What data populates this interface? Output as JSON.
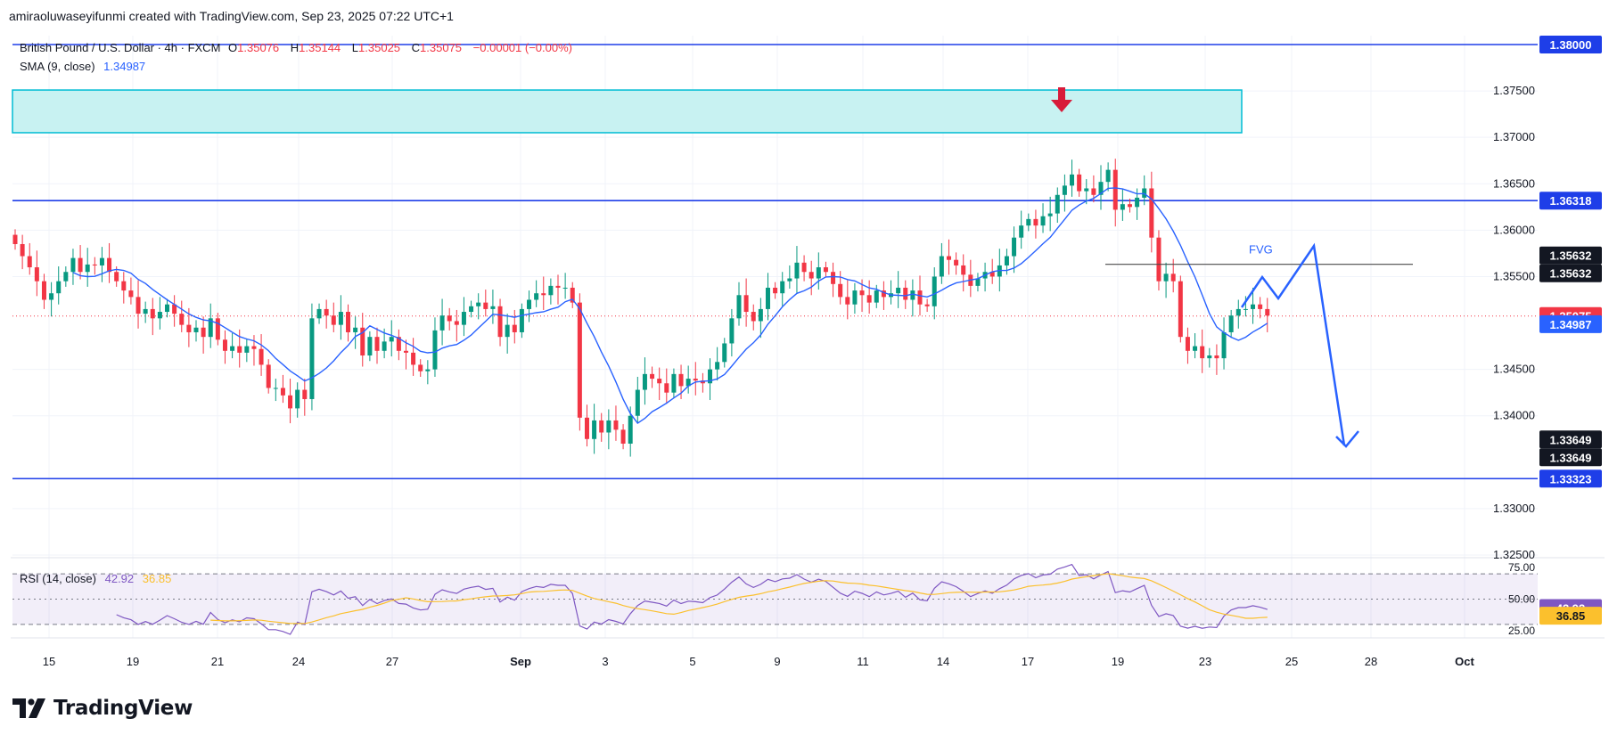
{
  "attribution": "amiraoluwaseyifunmi created with TradingView.com, Sep 23, 2025 07:22 UTC+1",
  "header": {
    "symbol": "British Pound / U.S. Dollar · 4h · FXCM",
    "o_label": "O",
    "o_value": "1.35076",
    "h_label": "H",
    "h_value": "1.35144",
    "l_label": "L",
    "l_value": "1.35025",
    "c_label": "C",
    "c_value": "1.35075",
    "change": "−0.00001 (−0.00%)",
    "sma_label": "SMA (9, close)",
    "sma_value": "1.34987"
  },
  "rsi_legend": {
    "label": "RSI (14, close)",
    "rsi_value": "42.92",
    "ma_value": "36.85"
  },
  "brand": {
    "name": "TradingView"
  },
  "colors": {
    "up": "#089981",
    "down": "#f23645",
    "sma": "#2962ff",
    "rsi": "#7e57c2",
    "rsi_ma": "#fbc02d",
    "level": "#1e3ee8",
    "zone_fill": "#c8f2f2",
    "zone_border": "#00bcd4",
    "arrow_down": "#e91e3c",
    "projection": "#2962ff"
  },
  "chart_data": {
    "type": "candlestick",
    "symbol": "GBPUSD",
    "timeframe": "4h",
    "ylim": [
      1.32475,
      1.3808
    ],
    "y_ticks": [
      "1.37500",
      "1.37000",
      "1.36500",
      "1.36000",
      "1.35500",
      "1.34500",
      "1.34000",
      "1.33000",
      "1.32500"
    ],
    "x_ticks": [
      "15",
      "19",
      "21",
      "24",
      "27",
      "Sep",
      "3",
      "5",
      "9",
      "11",
      "14",
      "17",
      "19",
      "23",
      "25",
      "28",
      "Oct"
    ],
    "price_labels": [
      {
        "text": "1.38000",
        "value": 1.38,
        "kind": "level"
      },
      {
        "text": "1.36318",
        "value": 1.36318,
        "kind": "level"
      },
      {
        "text": "1.35632",
        "value": 1.35632,
        "kind": "dark"
      },
      {
        "text": "1.35632",
        "value": 1.35632,
        "kind": "dark"
      },
      {
        "text": "1.35075",
        "value": 1.35075,
        "kind": "price"
      },
      {
        "text": "1.34987",
        "value": 1.34987,
        "kind": "sma"
      },
      {
        "text": "1.33649",
        "value": 1.33649,
        "kind": "dark"
      },
      {
        "text": "1.33649",
        "value": 1.33649,
        "kind": "dark"
      },
      {
        "text": "1.33323",
        "value": 1.33323,
        "kind": "level"
      }
    ],
    "levels": [
      1.38,
      1.36318,
      1.33323
    ],
    "supply_zone": {
      "low": 1.3705,
      "high": 1.3751
    },
    "fvg": {
      "label": "FVG",
      "price": 1.35632
    },
    "current_price": 1.35075,
    "closes": [
      1.3585,
      1.3572,
      1.356,
      1.3545,
      1.3525,
      1.3532,
      1.3545,
      1.3555,
      1.357,
      1.3555,
      1.3563,
      1.3562,
      1.357,
      1.3555,
      1.3545,
      1.3535,
      1.3528,
      1.351,
      1.3515,
      1.3505,
      1.3512,
      1.352,
      1.351,
      1.3498,
      1.349,
      1.3495,
      1.3485,
      1.3505,
      1.3482,
      1.347,
      1.3475,
      1.3468,
      1.3475,
      1.3472,
      1.3455,
      1.343,
      1.343,
      1.3422,
      1.3408,
      1.3428,
      1.3418,
      1.3505,
      1.3515,
      1.3508,
      1.3498,
      1.3512,
      1.349,
      1.3495,
      1.3465,
      1.3485,
      1.347,
      1.348,
      1.3485,
      1.347,
      1.3468,
      1.3455,
      1.3448,
      1.345,
      1.3492,
      1.3508,
      1.3502,
      1.3498,
      1.3512,
      1.3518,
      1.3522,
      1.3515,
      1.3518,
      1.3485,
      1.3498,
      1.349,
      1.3515,
      1.3525,
      1.3532,
      1.353,
      1.354,
      1.3538,
      1.3538,
      1.3522,
      1.3398,
      1.3375,
      1.3395,
      1.3382,
      1.3395,
      1.3385,
      1.337,
      1.34,
      1.3428,
      1.3445,
      1.344,
      1.3435,
      1.3425,
      1.3445,
      1.3432,
      1.344,
      1.3438,
      1.3435,
      1.345,
      1.3458,
      1.3478,
      1.3505,
      1.353,
      1.3512,
      1.3502,
      1.3515,
      1.3538,
      1.3532,
      1.3545,
      1.3548,
      1.3565,
      1.3555,
      1.3548,
      1.356,
      1.3555,
      1.3542,
      1.3528,
      1.352,
      1.3535,
      1.353,
      1.3522,
      1.3535,
      1.3528,
      1.3532,
      1.3538,
      1.3525,
      1.3535,
      1.352,
      1.3518,
      1.355,
      1.3572,
      1.3568,
      1.3562,
      1.3552,
      1.354,
      1.3548,
      1.3555,
      1.355,
      1.3562,
      1.3572,
      1.3592,
      1.3605,
      1.3612,
      1.3605,
      1.3615,
      1.3618,
      1.3638,
      1.3648,
      1.366,
      1.3642,
      1.3645,
      1.3638,
      1.3652,
      1.3665,
      1.3622,
      1.3628,
      1.3625,
      1.3635,
      1.3645,
      1.3592,
      1.3545,
      1.3553,
      1.3545,
      1.3485,
      1.347,
      1.3475,
      1.3462,
      1.3465,
      1.3462,
      1.349,
      1.3508,
      1.3515,
      1.3515,
      1.352,
      1.3515,
      1.3508
    ]
  },
  "rsi_data": {
    "ylim": [
      25,
      75
    ],
    "y_ticks": [
      "75.00",
      "50.00",
      "25.00"
    ],
    "levels": [
      70,
      50,
      30
    ],
    "current": 42.92,
    "ma_current": 36.85
  }
}
